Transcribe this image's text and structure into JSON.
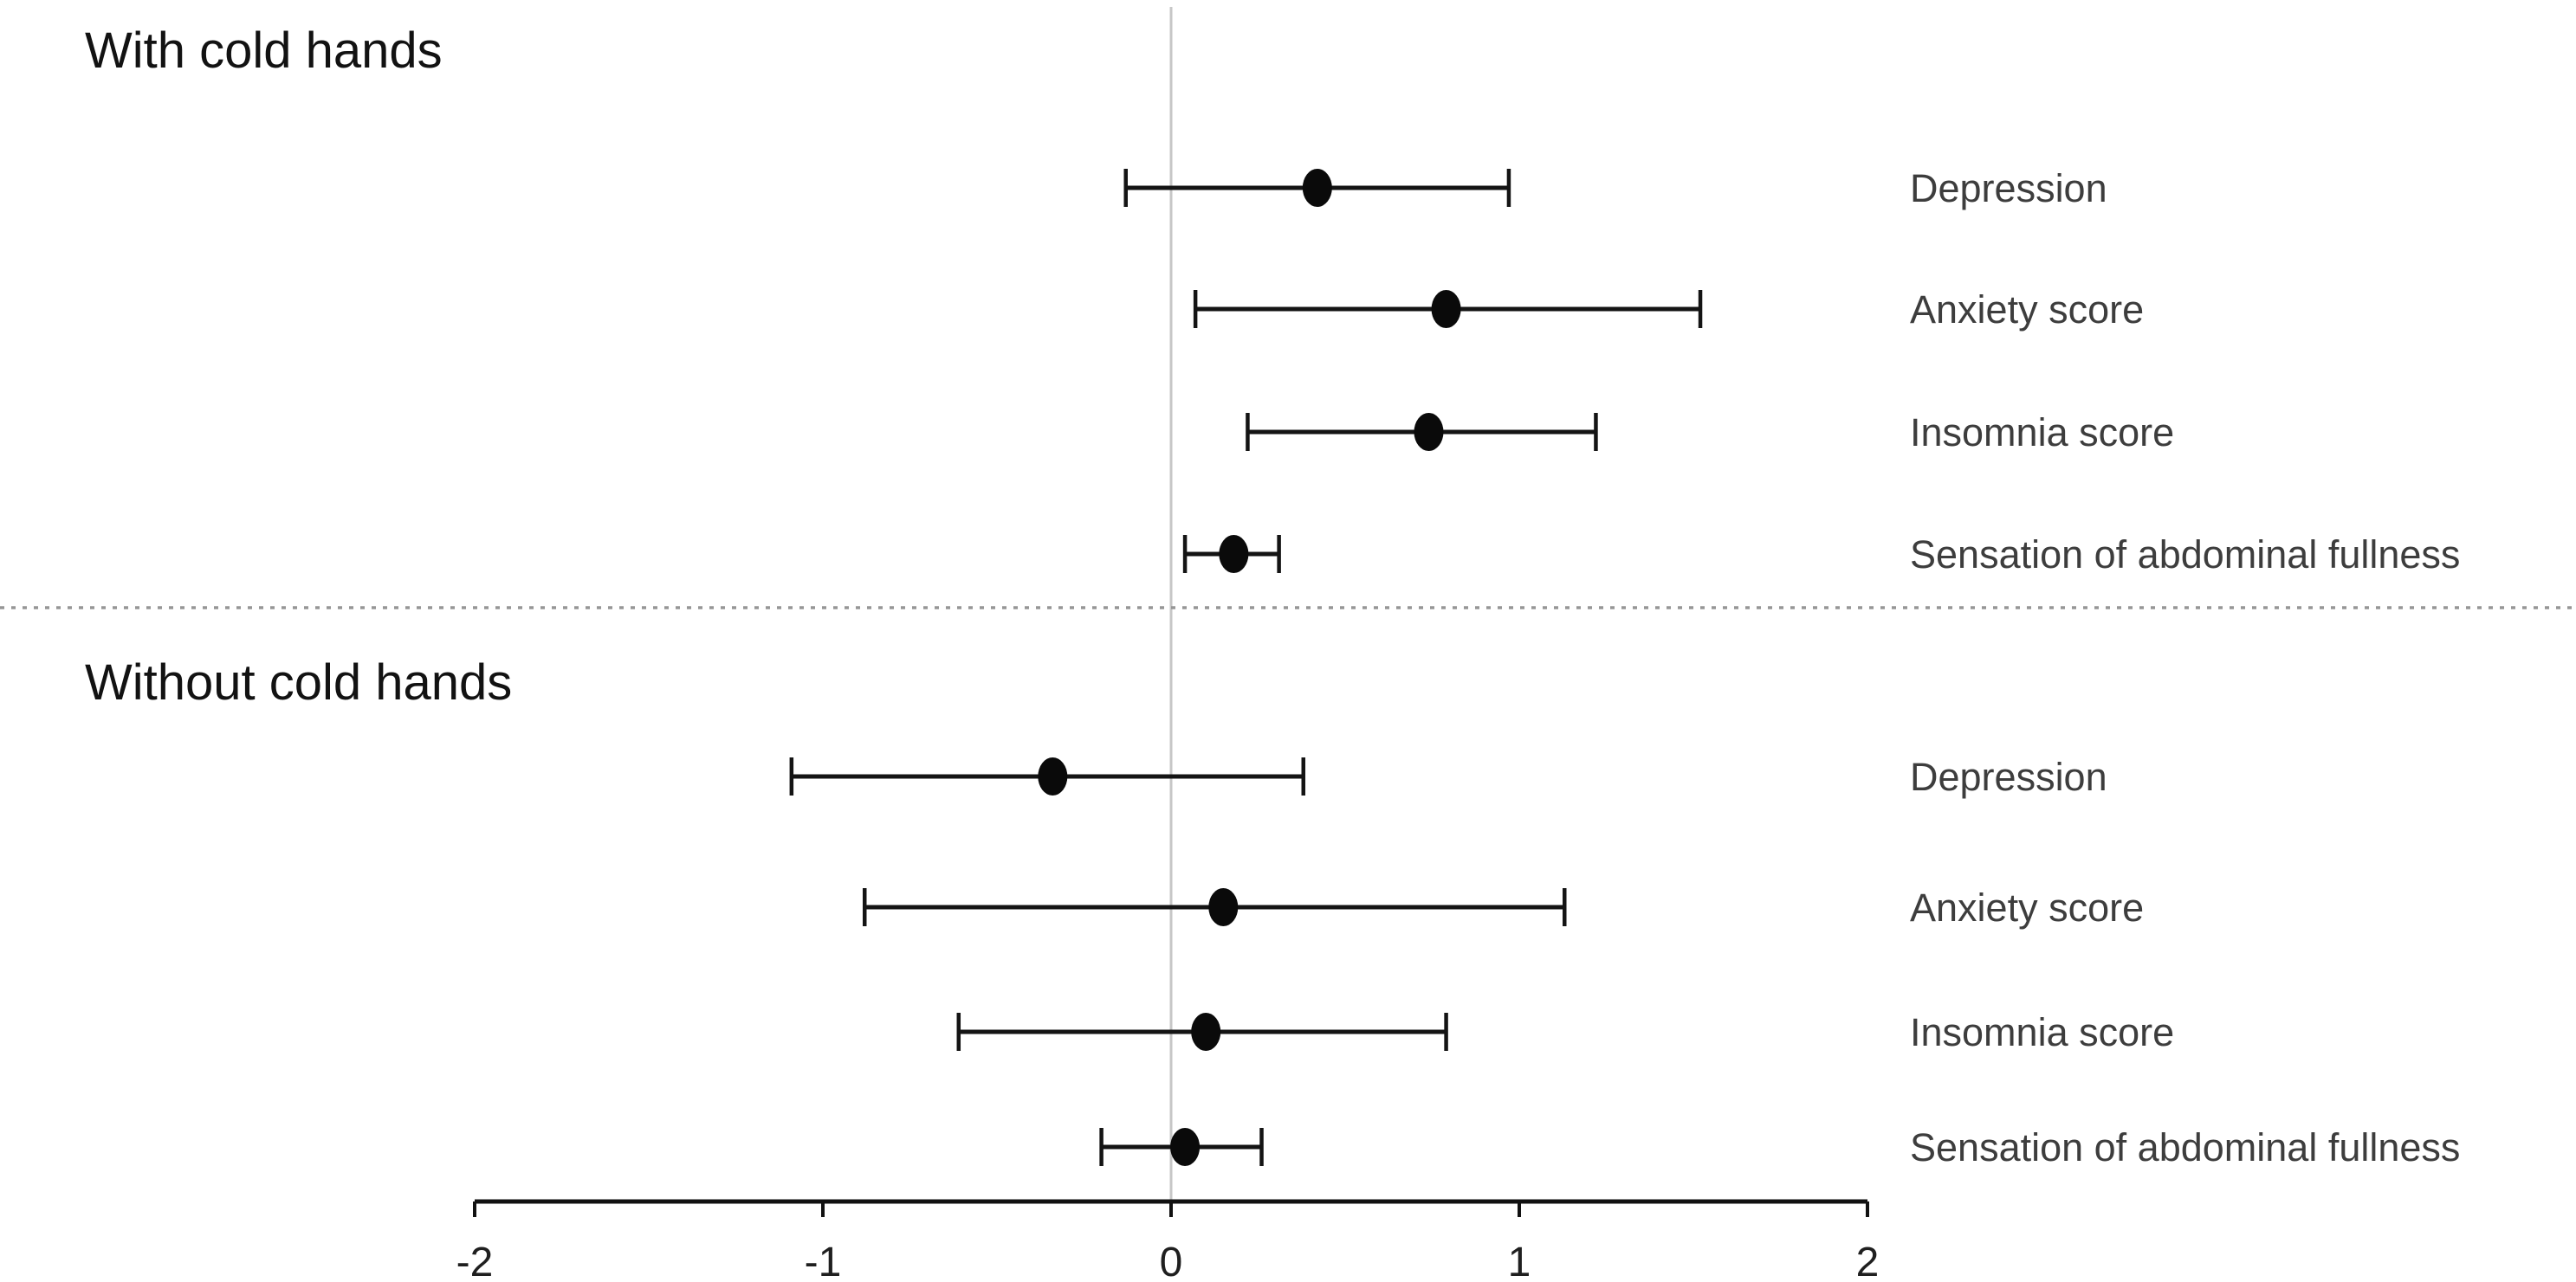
{
  "figure": {
    "background_color": "#ffffff",
    "point_color": "#0a0a0a",
    "ci_line_color": "#141414",
    "axis_color": "#111111",
    "label_color": "#3d3d3d",
    "reference_line_color": "#c7c7c7",
    "divider_line_color": "#969696"
  },
  "chart_data": {
    "type": "scatter",
    "subtype": "forest-plot-point-estimates-with-95ci-error-bars",
    "title": "",
    "xlabel": "",
    "ylabel": "",
    "xlim": [
      -2,
      2
    ],
    "x_ticks": [
      "-2",
      "-1",
      "0",
      "1",
      "2"
    ],
    "x_tick_values": [
      -2,
      -1,
      0,
      1,
      2
    ],
    "reference_line_x": 0,
    "grid": "single light vertical reference line at x=0; dashed horizontal divider between sections",
    "legend": "none",
    "sections": [
      {
        "title": "With cold hands",
        "rows": [
          {
            "label": "Depression",
            "estimate": 0.42,
            "ci_low": -0.13,
            "ci_high": 0.97
          },
          {
            "label": "Anxiety score",
            "estimate": 0.79,
            "ci_low": 0.07,
            "ci_high": 1.52
          },
          {
            "label": "Insomnia score",
            "estimate": 0.74,
            "ci_low": 0.22,
            "ci_high": 1.22
          },
          {
            "label": "Sensation of abdominal fullness",
            "estimate": 0.18,
            "ci_low": 0.04,
            "ci_high": 0.31
          }
        ]
      },
      {
        "title": "Without cold hands",
        "rows": [
          {
            "label": "Depression",
            "estimate": -0.34,
            "ci_low": -1.09,
            "ci_high": 0.38
          },
          {
            "label": "Anxiety score",
            "estimate": 0.15,
            "ci_low": -0.88,
            "ci_high": 1.13
          },
          {
            "label": "Insomnia score",
            "estimate": 0.1,
            "ci_low": -0.61,
            "ci_high": 0.79
          },
          {
            "label": "Sensation of abdominal fullness",
            "estimate": 0.04,
            "ci_low": -0.2,
            "ci_high": 0.26
          }
        ]
      }
    ]
  }
}
